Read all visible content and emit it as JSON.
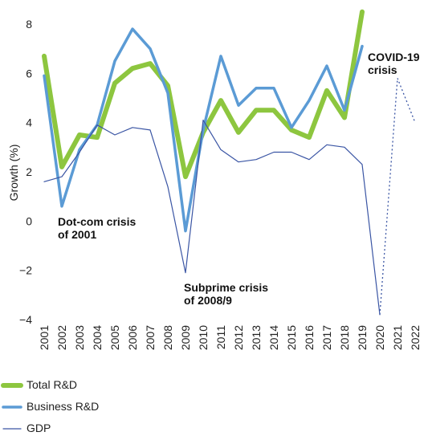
{
  "chart_data": {
    "type": "line",
    "title": "",
    "xlabel": "",
    "ylabel": "Growth (%)",
    "ylim": [
      -4,
      8.6
    ],
    "yticks": [
      -4,
      -2,
      0,
      2,
      4,
      6,
      8
    ],
    "ytick_labels": [
      "−4",
      "−2",
      "0",
      "2",
      "4",
      "6",
      "8"
    ],
    "x": [
      "2001",
      "2002",
      "2003",
      "2004",
      "2005",
      "2006",
      "2007",
      "2008",
      "2009",
      "2010",
      "2011",
      "2012",
      "2013",
      "2014",
      "2015",
      "2016",
      "2017",
      "2018",
      "2019",
      "2020",
      "2021",
      "2022"
    ],
    "grid": false,
    "legend_position": "bottom-left",
    "series": [
      {
        "name": "Total R&D",
        "color": "#8dc63f",
        "values": [
          6.7,
          2.2,
          3.5,
          3.4,
          5.6,
          6.2,
          6.4,
          5.5,
          1.8,
          3.6,
          4.9,
          3.6,
          4.5,
          4.5,
          3.7,
          3.4,
          5.3,
          4.2,
          8.5,
          null,
          null,
          null
        ]
      },
      {
        "name": "Business R&D",
        "color": "#5b9bd5",
        "values": [
          5.9,
          0.6,
          2.9,
          3.9,
          6.5,
          7.8,
          7.0,
          5.2,
          -0.4,
          3.7,
          6.7,
          4.7,
          5.4,
          5.4,
          3.8,
          4.9,
          6.3,
          4.5,
          7.1,
          null,
          null,
          null
        ]
      },
      {
        "name": "GDP",
        "color": "#3a55a4",
        "values": [
          1.6,
          1.8,
          2.8,
          3.9,
          3.5,
          3.8,
          3.7,
          1.4,
          -2.1,
          4.1,
          2.9,
          2.4,
          2.5,
          2.8,
          2.8,
          2.5,
          3.1,
          3.0,
          2.3,
          -3.8,
          null,
          null
        ],
        "projected": {
          "x": [
            "2020",
            "2021",
            "2022"
          ],
          "values": [
            -3.8,
            5.8,
            4.0
          ]
        }
      }
    ],
    "annotations": [
      {
        "lines": [
          "Dot-com crisis",
          "of 2001"
        ]
      },
      {
        "lines": [
          "Subprime crisis",
          "of 2008/9"
        ]
      },
      {
        "lines": [
          "COVID-19",
          "crisis"
        ]
      }
    ]
  }
}
